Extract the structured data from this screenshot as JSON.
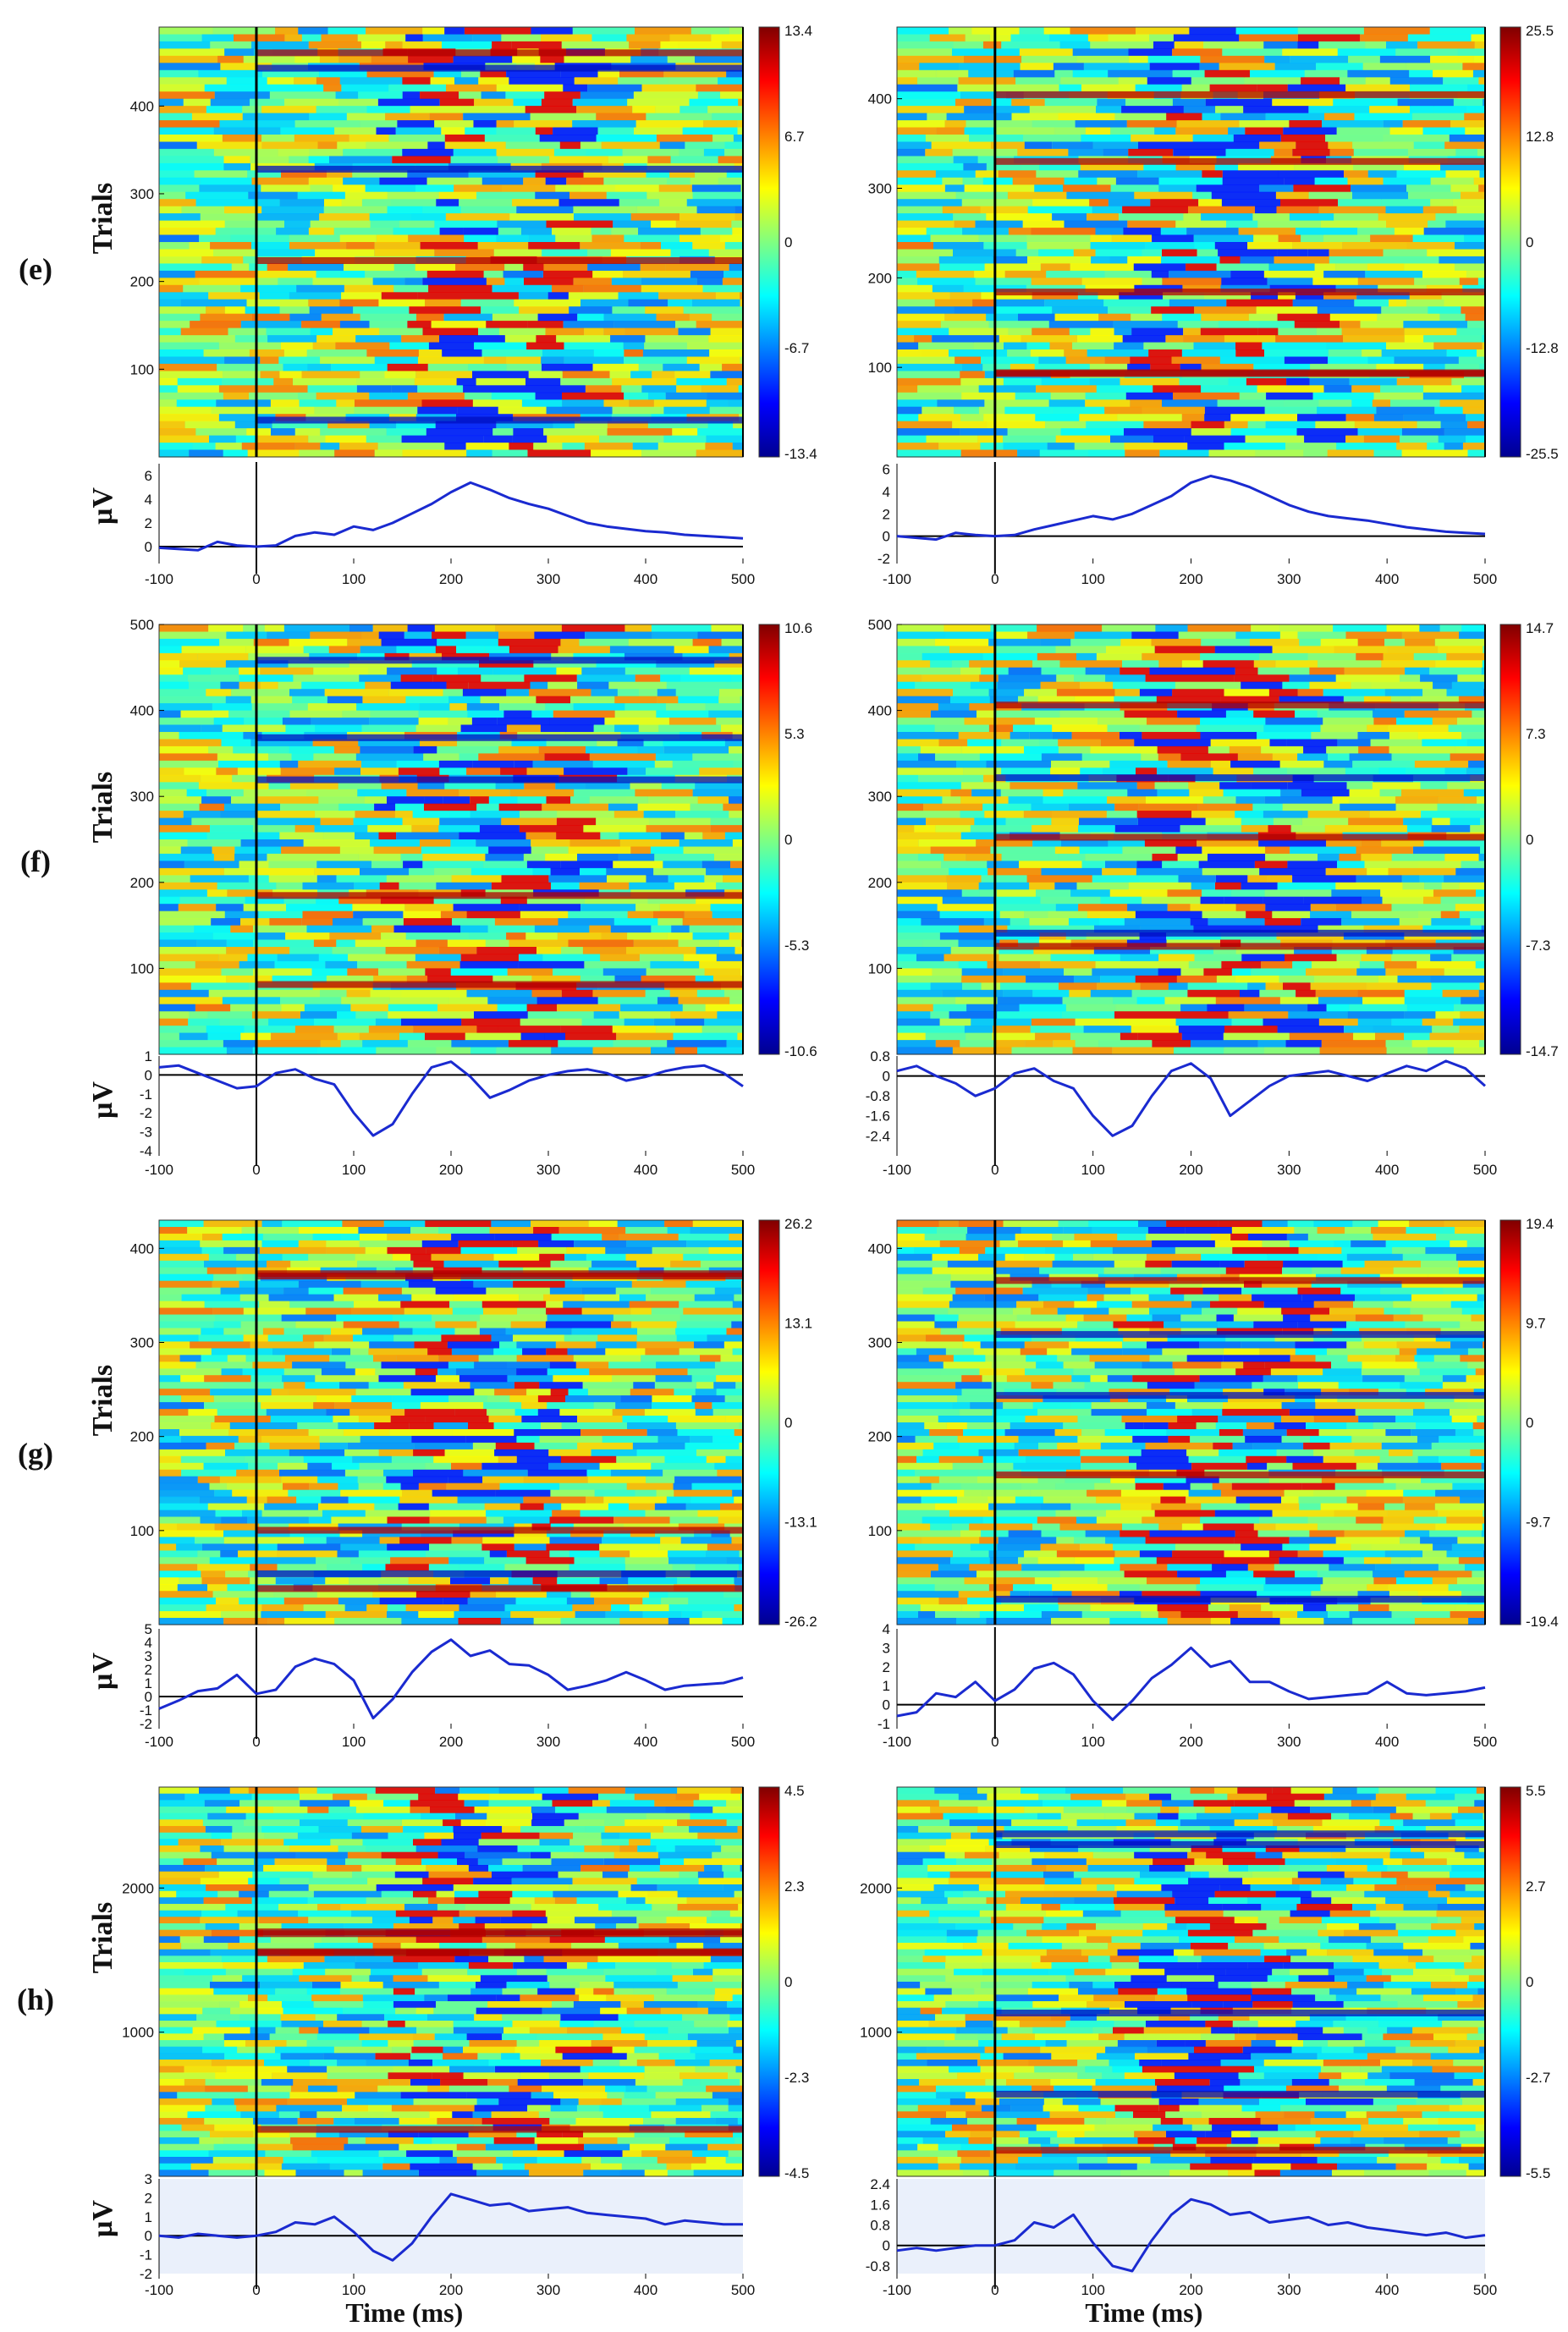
{
  "chart_data": [
    {
      "type": "heatmap",
      "panel": "(e)",
      "column": "left",
      "ylabel": "Trials",
      "erp_ylabel": "µV",
      "ylim": [
        0,
        490
      ],
      "yticks": [
        100,
        200,
        300,
        400
      ],
      "xlim": [
        -100,
        500
      ],
      "clim": [
        -13.4,
        13.4
      ],
      "cbar_ticks": [
        "13.4",
        "6.7",
        "0",
        "-6.7",
        "-13.4"
      ],
      "erp": {
        "ylim": [
          -1,
          7
        ],
        "yticks": [
          "6",
          "4",
          "2",
          "0"
        ],
        "x": [
          -100,
          -60,
          -40,
          -20,
          0,
          20,
          40,
          60,
          80,
          100,
          120,
          140,
          160,
          180,
          200,
          220,
          240,
          260,
          280,
          300,
          320,
          340,
          360,
          380,
          400,
          420,
          440,
          460,
          480,
          500
        ],
        "y": [
          -0.1,
          -0.3,
          0.4,
          0.1,
          0.0,
          0.1,
          0.9,
          1.2,
          1.0,
          1.7,
          1.4,
          2.0,
          2.8,
          3.6,
          4.6,
          5.4,
          4.8,
          4.1,
          3.6,
          3.2,
          2.6,
          2.0,
          1.7,
          1.5,
          1.3,
          1.2,
          1.0,
          0.9,
          0.8,
          0.7
        ]
      }
    },
    {
      "type": "heatmap",
      "panel": "(e)",
      "column": "right",
      "ylabel": "",
      "erp_ylabel": "",
      "ylim": [
        0,
        480
      ],
      "yticks": [
        100,
        200,
        300,
        400
      ],
      "xlim": [
        -100,
        500
      ],
      "clim": [
        -25.5,
        25.5
      ],
      "cbar_ticks": [
        "25.5",
        "12.8",
        "0",
        "-12.8",
        "-25.5"
      ],
      "erp": {
        "ylim": [
          -2,
          6.5
        ],
        "yticks": [
          "6",
          "4",
          "2",
          "0",
          "-2"
        ],
        "x": [
          -100,
          -60,
          -40,
          -20,
          0,
          20,
          40,
          60,
          80,
          100,
          120,
          140,
          160,
          180,
          200,
          220,
          240,
          260,
          280,
          300,
          320,
          340,
          360,
          380,
          400,
          420,
          440,
          460,
          480,
          500
        ],
        "y": [
          0.0,
          -0.3,
          0.3,
          0.1,
          0.0,
          0.1,
          0.6,
          1.0,
          1.4,
          1.8,
          1.5,
          2.0,
          2.8,
          3.6,
          4.8,
          5.4,
          5.0,
          4.4,
          3.6,
          2.8,
          2.2,
          1.8,
          1.6,
          1.4,
          1.1,
          0.8,
          0.6,
          0.4,
          0.3,
          0.2
        ]
      }
    },
    {
      "type": "heatmap",
      "panel": "(f)",
      "column": "left",
      "ylabel": "Trials",
      "erp_ylabel": "µV",
      "ylim": [
        0,
        500
      ],
      "yticks": [
        100,
        200,
        300,
        400,
        500
      ],
      "xlim": [
        -100,
        500
      ],
      "clim": [
        -10.6,
        10.6
      ],
      "cbar_ticks": [
        "10.6",
        "5.3",
        "0",
        "-5.3",
        "-10.6"
      ],
      "erp": {
        "ylim": [
          -4,
          1
        ],
        "yticks": [
          "1",
          "0",
          "-1",
          "-2",
          "-3",
          "-4"
        ],
        "x": [
          -100,
          -80,
          -60,
          -40,
          -20,
          0,
          20,
          40,
          60,
          80,
          100,
          120,
          140,
          160,
          180,
          200,
          220,
          240,
          260,
          280,
          300,
          320,
          340,
          360,
          380,
          400,
          420,
          440,
          460,
          480,
          500
        ],
        "y": [
          0.4,
          0.5,
          0.1,
          -0.3,
          -0.7,
          -0.6,
          0.1,
          0.3,
          -0.2,
          -0.5,
          -2.0,
          -3.2,
          -2.6,
          -1.0,
          0.4,
          0.7,
          -0.1,
          -1.2,
          -0.8,
          -0.3,
          0.0,
          0.2,
          0.3,
          0.1,
          -0.3,
          -0.1,
          0.2,
          0.4,
          0.5,
          0.1,
          -0.6
        ]
      }
    },
    {
      "type": "heatmap",
      "panel": "(f)",
      "column": "right",
      "ylabel": "",
      "erp_ylabel": "",
      "ylim": [
        0,
        500
      ],
      "yticks": [
        100,
        200,
        300,
        400,
        500
      ],
      "xlim": [
        -100,
        500
      ],
      "clim": [
        -14.7,
        14.7
      ],
      "cbar_ticks": [
        "14.7",
        "7.3",
        "0",
        "-7.3",
        "-14.7"
      ],
      "erp": {
        "ylim": [
          -3,
          0.8
        ],
        "yticks": [
          "0.8",
          "0",
          "-0.8",
          "-1.6",
          "-2.4"
        ],
        "x": [
          -100,
          -80,
          -60,
          -40,
          -20,
          0,
          20,
          40,
          60,
          80,
          100,
          120,
          140,
          160,
          180,
          200,
          220,
          240,
          260,
          280,
          300,
          320,
          340,
          360,
          380,
          400,
          420,
          440,
          460,
          480,
          500
        ],
        "y": [
          0.2,
          0.4,
          0.0,
          -0.3,
          -0.8,
          -0.5,
          0.1,
          0.3,
          -0.2,
          -0.5,
          -1.6,
          -2.4,
          -2.0,
          -0.8,
          0.2,
          0.5,
          -0.1,
          -1.6,
          -1.0,
          -0.4,
          0.0,
          0.1,
          0.2,
          0.0,
          -0.2,
          0.1,
          0.4,
          0.2,
          0.6,
          0.3,
          -0.4
        ]
      }
    },
    {
      "type": "heatmap",
      "panel": "(g)",
      "column": "left",
      "ylabel": "Trials",
      "erp_ylabel": "µV",
      "ylim": [
        0,
        430
      ],
      "yticks": [
        100,
        200,
        300,
        400
      ],
      "xlim": [
        -100,
        500
      ],
      "clim": [
        -26.2,
        26.2
      ],
      "cbar_ticks": [
        "26.2",
        "13.1",
        "0",
        "-13.1",
        "-26.2"
      ],
      "erp": {
        "ylim": [
          -2,
          5
        ],
        "yticks": [
          "5",
          "4",
          "3",
          "2",
          "1",
          "0",
          "-1",
          "-2"
        ],
        "x": [
          -100,
          -80,
          -60,
          -40,
          -20,
          0,
          20,
          40,
          60,
          80,
          100,
          120,
          140,
          160,
          180,
          200,
          220,
          240,
          260,
          280,
          300,
          320,
          340,
          360,
          380,
          400,
          420,
          440,
          460,
          480,
          500
        ],
        "y": [
          -0.9,
          -0.3,
          0.4,
          0.6,
          1.6,
          0.2,
          0.5,
          2.2,
          2.8,
          2.4,
          1.2,
          -1.6,
          -0.2,
          1.8,
          3.3,
          4.2,
          3.0,
          3.4,
          2.4,
          2.3,
          1.6,
          0.5,
          0.8,
          1.2,
          1.8,
          1.2,
          0.5,
          0.8,
          0.9,
          1.0,
          1.4
        ]
      }
    },
    {
      "type": "heatmap",
      "panel": "(g)",
      "column": "right",
      "ylabel": "",
      "erp_ylabel": "",
      "ylim": [
        0,
        430
      ],
      "yticks": [
        100,
        200,
        300,
        400
      ],
      "xlim": [
        -100,
        500
      ],
      "clim": [
        -19.4,
        19.4
      ],
      "cbar_ticks": [
        "19.4",
        "9.7",
        "0",
        "-9.7",
        "-19.4"
      ],
      "erp": {
        "ylim": [
          -1,
          4
        ],
        "yticks": [
          "4",
          "3",
          "2",
          "1",
          "0",
          "-1"
        ],
        "x": [
          -100,
          -80,
          -60,
          -40,
          -20,
          0,
          20,
          40,
          60,
          80,
          100,
          120,
          140,
          160,
          180,
          200,
          220,
          240,
          260,
          280,
          300,
          320,
          340,
          360,
          380,
          400,
          420,
          440,
          460,
          480,
          500
        ],
        "y": [
          -0.6,
          -0.4,
          0.6,
          0.4,
          1.2,
          0.2,
          0.8,
          1.9,
          2.2,
          1.6,
          0.2,
          -0.8,
          0.2,
          1.4,
          2.1,
          3.0,
          2.0,
          2.3,
          1.2,
          1.2,
          0.7,
          0.3,
          0.4,
          0.5,
          0.6,
          1.2,
          0.6,
          0.5,
          0.6,
          0.7,
          0.9
        ]
      }
    },
    {
      "type": "heatmap",
      "panel": "(h)",
      "column": "left",
      "ylabel": "Trials",
      "erp_ylabel": "µV",
      "ylim": [
        0,
        2700
      ],
      "yticks": [
        1000,
        2000
      ],
      "xlim": [
        -100,
        500
      ],
      "clim": [
        -4.5,
        4.5
      ],
      "cbar_ticks": [
        "4.5",
        "2.3",
        "0",
        "-2.3",
        "-4.5"
      ],
      "xlabel": "Time (ms)",
      "erp": {
        "ylim": [
          -2,
          3
        ],
        "yticks": [
          "3",
          "2",
          "1",
          "0",
          "-1",
          "-2"
        ],
        "x": [
          -100,
          -80,
          -60,
          -40,
          -20,
          0,
          20,
          40,
          60,
          80,
          100,
          120,
          140,
          160,
          180,
          200,
          220,
          240,
          260,
          280,
          300,
          320,
          340,
          360,
          380,
          400,
          420,
          440,
          460,
          480,
          500
        ],
        "y": [
          0.0,
          -0.1,
          0.1,
          0.0,
          -0.1,
          0.0,
          0.2,
          0.7,
          0.6,
          1.0,
          0.2,
          -0.8,
          -1.3,
          -0.4,
          1.0,
          2.2,
          1.9,
          1.6,
          1.7,
          1.3,
          1.4,
          1.5,
          1.2,
          1.1,
          1.0,
          0.9,
          0.6,
          0.8,
          0.7,
          0.6,
          0.6
        ]
      }
    },
    {
      "type": "heatmap",
      "panel": "(h)",
      "column": "right",
      "ylabel": "",
      "erp_ylabel": "",
      "ylim": [
        0,
        2700
      ],
      "yticks": [
        1000,
        2000
      ],
      "xlim": [
        -100,
        500
      ],
      "clim": [
        -5.5,
        5.5
      ],
      "cbar_ticks": [
        "5.5",
        "2.7",
        "0",
        "-2.7",
        "-5.5"
      ],
      "xlabel": "Time (ms)",
      "erp": {
        "ylim": [
          -1.1,
          2.6
        ],
        "yticks": [
          "2.4",
          "1.6",
          "0.8",
          "0",
          "-0.8"
        ],
        "x": [
          -100,
          -80,
          -60,
          -40,
          -20,
          0,
          20,
          40,
          60,
          80,
          100,
          120,
          140,
          160,
          180,
          200,
          220,
          240,
          260,
          280,
          300,
          320,
          340,
          360,
          380,
          400,
          420,
          440,
          460,
          480,
          500
        ],
        "y": [
          -0.2,
          -0.1,
          -0.2,
          -0.1,
          0.0,
          0.0,
          0.2,
          0.9,
          0.7,
          1.2,
          0.1,
          -0.8,
          -1.0,
          0.2,
          1.2,
          1.8,
          1.6,
          1.2,
          1.3,
          0.9,
          1.0,
          1.1,
          0.8,
          0.9,
          0.7,
          0.6,
          0.5,
          0.4,
          0.5,
          0.3,
          0.4
        ]
      }
    }
  ],
  "xticks": [
    "-100",
    "0",
    "100",
    "200",
    "300",
    "400",
    "500"
  ]
}
